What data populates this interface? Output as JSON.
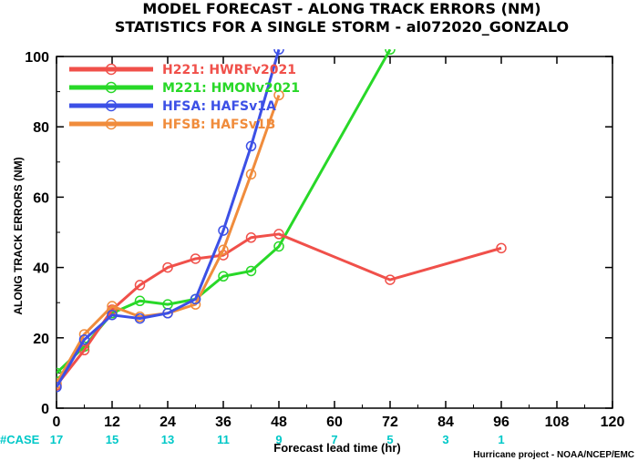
{
  "chart_data": {
    "type": "line",
    "title": "MODEL FORECAST - ALONG TRACK ERRORS (NM)",
    "subtitle": "STATISTICS FOR A SINGLE STORM - al072020_GONZALO",
    "xlabel": "Forecast lead time (hr)",
    "ylabel": "ALONG TRACK ERRORS (NM)",
    "xlim": [
      0,
      120
    ],
    "ylim": [
      0,
      100
    ],
    "xticks": [
      "0",
      "12",
      "24",
      "36",
      "48",
      "60",
      "72",
      "84",
      "96",
      "108",
      "120"
    ],
    "yticks": [
      "0",
      "20",
      "40",
      "60",
      "80",
      "100"
    ],
    "grid": false,
    "legend_position": "top-left",
    "series": [
      {
        "name": "H221: HWRFv2021",
        "color": "#f0504a",
        "x": [
          0,
          6,
          12,
          18,
          24,
          30,
          36,
          42,
          48,
          72,
          96
        ],
        "y": [
          6.5,
          16.5,
          28,
          35,
          40,
          42.5,
          43.5,
          48.5,
          49.5,
          36.5,
          45.5
        ]
      },
      {
        "name": "M221: HMONv2021",
        "color": "#28d828",
        "x": [
          0,
          6,
          12,
          18,
          24,
          30,
          36,
          42,
          48,
          72
        ],
        "y": [
          10,
          17.5,
          27,
          30.5,
          29.5,
          31,
          37.5,
          39,
          46,
          102
        ]
      },
      {
        "name": "HFSA: HAFSv1A",
        "color": "#3c50e6",
        "x": [
          0,
          6,
          12,
          18,
          24,
          30,
          36,
          42,
          48
        ],
        "y": [
          6,
          19.5,
          26.5,
          25.5,
          27,
          31,
          50.5,
          74.5,
          102
        ]
      },
      {
        "name": "HFSB: HAFSv1B",
        "color": "#f08c3c",
        "x": [
          0,
          6,
          12,
          18,
          24,
          30,
          36,
          42,
          48
        ],
        "y": [
          7,
          21,
          29,
          26,
          27,
          29.5,
          45,
          66.5,
          89
        ]
      }
    ],
    "cases": {
      "label": "#CASE",
      "x": [
        0,
        12,
        24,
        36,
        48,
        60,
        72,
        84,
        96
      ],
      "values": [
        "17",
        "15",
        "13",
        "11",
        "9",
        "7",
        "5",
        "3",
        "1"
      ],
      "color": "#00c8c8"
    }
  },
  "credit": "Hurricane project - NOAA/NCEP/EMC"
}
